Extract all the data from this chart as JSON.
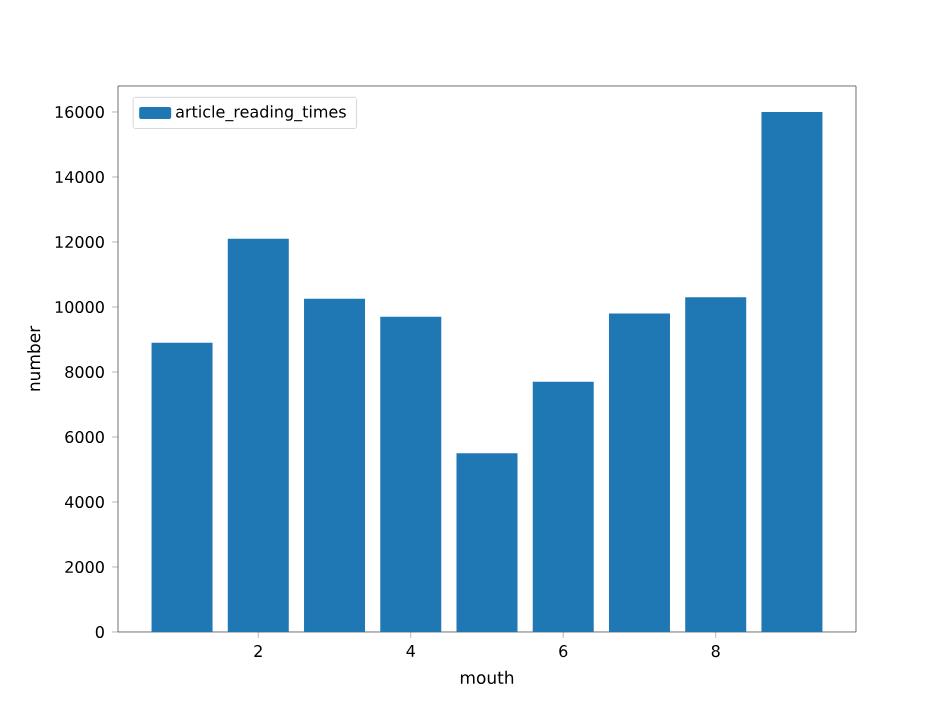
{
  "chart_data": {
    "type": "bar",
    "xlabel": "mouth",
    "ylabel": "number",
    "x": [
      1,
      2,
      3,
      4,
      5,
      6,
      7,
      8,
      9
    ],
    "series": [
      {
        "name": "article_reading_times",
        "color": "#1f77b4",
        "values": [
          8900,
          12100,
          10250,
          9700,
          5500,
          7700,
          9800,
          10300,
          16000
        ]
      }
    ],
    "xlim": [
      0.16,
      9.84
    ],
    "ylim": [
      0,
      16800
    ],
    "xticks": [
      2,
      4,
      6,
      8
    ],
    "yticks": [
      0,
      2000,
      4000,
      6000,
      8000,
      10000,
      12000,
      14000,
      16000
    ],
    "legend": "top left",
    "grid": false
  }
}
